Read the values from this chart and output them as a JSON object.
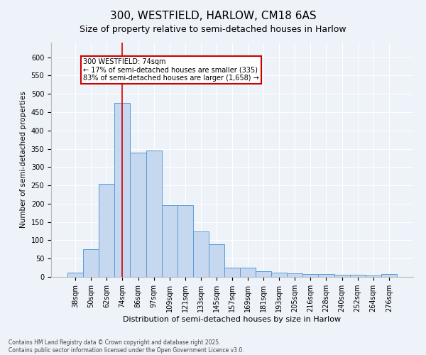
{
  "title1": "300, WESTFIELD, HARLOW, CM18 6AS",
  "title2": "Size of property relative to semi-detached houses in Harlow",
  "xlabel": "Distribution of semi-detached houses by size in Harlow",
  "ylabel": "Number of semi-detached properties",
  "categories": [
    "38sqm",
    "50sqm",
    "62sqm",
    "74sqm",
    "86sqm",
    "97sqm",
    "109sqm",
    "121sqm",
    "133sqm",
    "145sqm",
    "157sqm",
    "169sqm",
    "181sqm",
    "193sqm",
    "205sqm",
    "216sqm",
    "228sqm",
    "240sqm",
    "252sqm",
    "264sqm",
    "276sqm"
  ],
  "values": [
    12,
    75,
    255,
    475,
    340,
    345,
    195,
    195,
    125,
    90,
    25,
    25,
    16,
    12,
    10,
    7,
    8,
    5,
    5,
    3,
    7
  ],
  "bar_color": "#c5d8f0",
  "bar_edge_color": "#5b9bd5",
  "property_label": "300 WESTFIELD: 74sqm",
  "annotation_line1": "← 17% of semi-detached houses are smaller (335)",
  "annotation_line2": "83% of semi-detached houses are larger (1,658) →",
  "annotation_box_edgecolor": "#cc0000",
  "vline_color": "#cc0000",
  "vline_x_index": 3,
  "ylim": [
    0,
    640
  ],
  "yticks": [
    0,
    50,
    100,
    150,
    200,
    250,
    300,
    350,
    400,
    450,
    500,
    550,
    600
  ],
  "footnote1": "Contains HM Land Registry data © Crown copyright and database right 2025.",
  "footnote2": "Contains public sector information licensed under the Open Government Licence v3.0.",
  "bg_color": "#eef2f9",
  "plot_bg_color": "#eef2f9",
  "grid_color": "#ffffff",
  "title1_fontsize": 11,
  "title2_fontsize": 9,
  "xlabel_fontsize": 8,
  "ylabel_fontsize": 7.5,
  "tick_fontsize": 7,
  "footnote_fontsize": 5.5
}
